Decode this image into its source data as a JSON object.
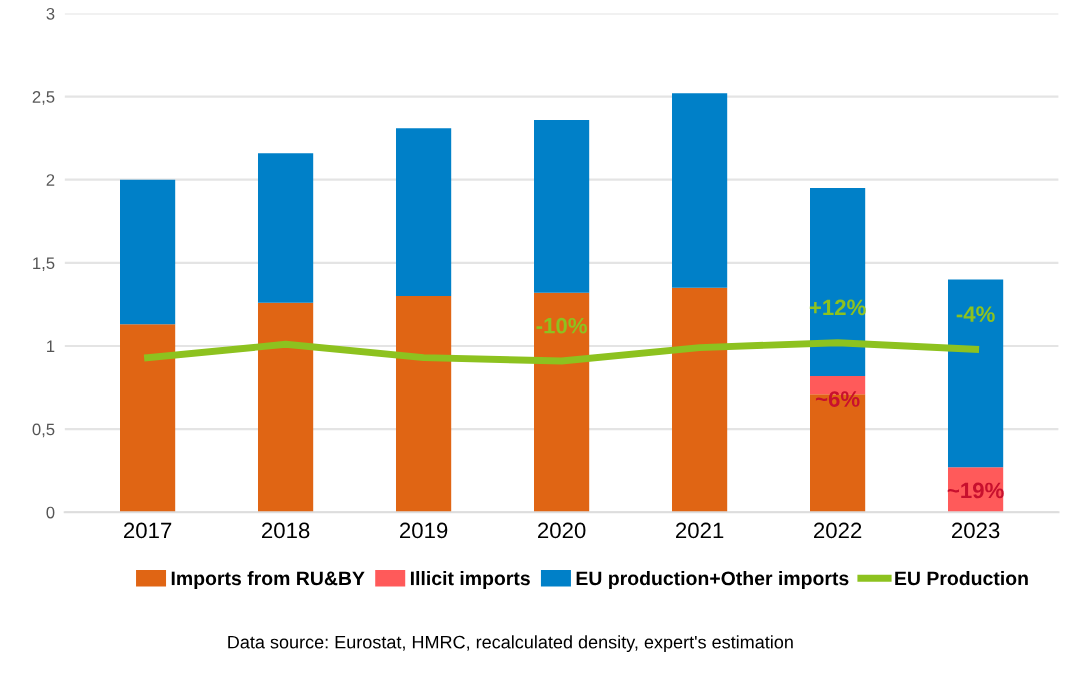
{
  "chart_data": {
    "type": "bar",
    "stacked": true,
    "categories": [
      "2017",
      "2018",
      "2019",
      "2020",
      "2021",
      "2022",
      "2023"
    ],
    "series": [
      {
        "name": "Imports from RU&BY",
        "color": "#e06514",
        "values": [
          1.13,
          1.26,
          1.3,
          1.32,
          1.35,
          0.71,
          0
        ]
      },
      {
        "name": "Illicit imports",
        "color": "#ff5a5a",
        "values": [
          0,
          0,
          0,
          0,
          0,
          0.11,
          0.27
        ]
      },
      {
        "name": "EU production+Other imports",
        "color": "#0080c8",
        "values": [
          0.87,
          0.9,
          1.01,
          1.04,
          1.17,
          1.13,
          1.13
        ]
      },
      {
        "name": "EU Production",
        "type": "line",
        "color": "#8dc21f",
        "values": [
          0.93,
          1.01,
          0.93,
          0.91,
          0.99,
          1.02,
          0.98
        ]
      }
    ],
    "ylim": [
      0,
      3
    ],
    "yticks": [
      0,
      {
        "value": 0.5,
        "label": "0,5"
      },
      1,
      {
        "value": 1.5,
        "label": "1,5"
      },
      2,
      {
        "value": 2.5,
        "label": "2,5"
      },
      3
    ],
    "grid": "y",
    "legend": "bottom",
    "marker": "none",
    "annotations": [
      {
        "text": "-10%",
        "x": "2020",
        "y": 0.91
      },
      {
        "text": "+12%",
        "x": "2022",
        "y": 1.02
      },
      {
        "text": "-4%",
        "x": "2023",
        "y": 0.98
      },
      {
        "text": "~6%",
        "x": "2022",
        "y": 0.82
      },
      {
        "text": "~19%",
        "x": "2023",
        "y": 0.27
      },
      "Data source: Eurostat, HMRC, recalculated density, expert's estimation"
    ]
  }
}
